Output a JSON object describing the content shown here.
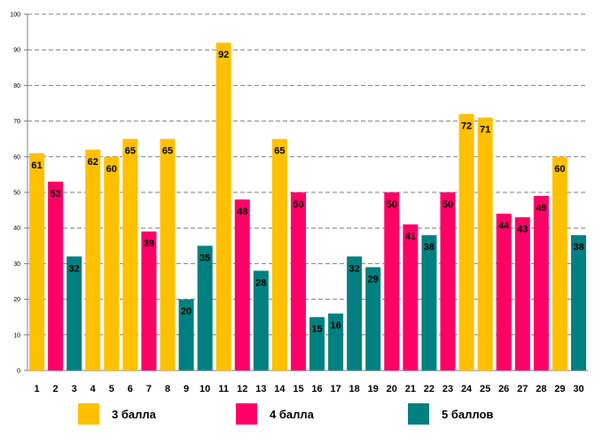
{
  "chart_data": {
    "type": "bar",
    "title": "",
    "xlabel": "",
    "ylabel": "",
    "ylim": [
      0,
      100
    ],
    "yticks": [
      0,
      10,
      20,
      30,
      40,
      50,
      60,
      70,
      80,
      90,
      100
    ],
    "grid": true,
    "categories": [
      "1",
      "2",
      "3",
      "4",
      "5",
      "6",
      "7",
      "8",
      "9",
      "10",
      "11",
      "12",
      "13",
      "14",
      "15",
      "16",
      "17",
      "18",
      "19",
      "20",
      "21",
      "22",
      "23",
      "24",
      "25",
      "26",
      "27",
      "28",
      "29",
      "30"
    ],
    "values": [
      61,
      53,
      32,
      62,
      60,
      65,
      39,
      65,
      20,
      35,
      92,
      48,
      28,
      65,
      50,
      15,
      16,
      32,
      29,
      50,
      41,
      38,
      50,
      72,
      71,
      44,
      43,
      49,
      60,
      38
    ],
    "groups": [
      "g3",
      "g4",
      "g5",
      "g3",
      "g3",
      "g3",
      "g4",
      "g3",
      "g5",
      "g5",
      "g3",
      "g4",
      "g5",
      "g3",
      "g4",
      "g5",
      "g5",
      "g5",
      "g5",
      "g4",
      "g4",
      "g5",
      "g4",
      "g3",
      "g3",
      "g4",
      "g4",
      "g4",
      "g3",
      "g5"
    ],
    "legend": [
      {
        "key": "g3",
        "name": "3 балла",
        "color": "#FFC000"
      },
      {
        "key": "g4",
        "name": "4 балла",
        "color": "#FF0066"
      },
      {
        "key": "g5",
        "name": "5 баллов",
        "color": "#008080"
      }
    ],
    "legend_position": "bottom"
  }
}
